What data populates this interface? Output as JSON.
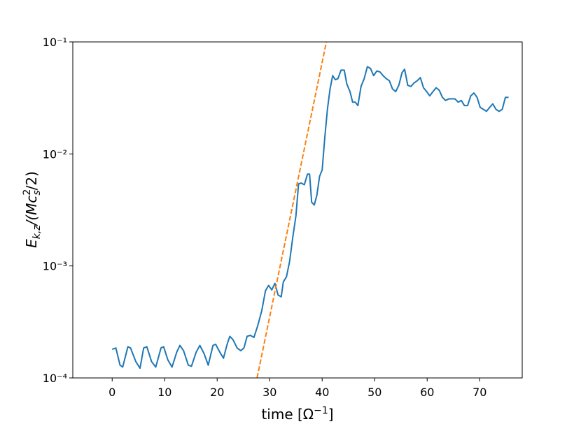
{
  "chart_data": {
    "type": "line",
    "yscale": "log",
    "x_label": [
      "time [Ω",
      "−1",
      "]"
    ],
    "y_label": [
      "E",
      "k,z",
      "/(Mc",
      "2",
      "s",
      "/2)"
    ],
    "xlim": [
      -7.5,
      78.1
    ],
    "ylim": [
      0.0001,
      0.1
    ],
    "xticks": [
      0,
      10,
      20,
      30,
      40,
      50,
      60,
      70
    ],
    "yticks": [
      {
        "value": 0.0001,
        "label": "10⁻⁴"
      },
      {
        "value": 0.001,
        "label": "10⁻³"
      },
      {
        "value": 0.01,
        "label": "10⁻²"
      },
      {
        "value": 0.1,
        "label": "10⁻¹"
      }
    ],
    "series": [
      {
        "color": "#1f77b4",
        "linestyle": "solid",
        "x": [
          0,
          0.7,
          1.5,
          2,
          3,
          3.5,
          4.5,
          5.3,
          6,
          6.6,
          7.5,
          8.3,
          9.3,
          9.8,
          10.6,
          11.4,
          12.3,
          12.9,
          13.6,
          14.5,
          15.1,
          16,
          16.7,
          17.5,
          18.3,
          19.2,
          19.7,
          20.5,
          21.2,
          21.9,
          22.4,
          23,
          23.8,
          24.5,
          25.1,
          25.7,
          26.3,
          27,
          27.7,
          28.5,
          29.2,
          29.8,
          30.4,
          31,
          31.6,
          32.2,
          32.6,
          33.2,
          33.8,
          34.4,
          35,
          35.5,
          36,
          36.6,
          37.2,
          37.6,
          38,
          38.5,
          39,
          39.5,
          40,
          40.5,
          41,
          41.5,
          42,
          42.5,
          43,
          43.6,
          44.2,
          44.7,
          45.3,
          45.8,
          46.3,
          46.8,
          47.4,
          48,
          48.6,
          49.2,
          49.8,
          50.4,
          51,
          51.6,
          52.2,
          52.8,
          53.4,
          54,
          54.6,
          55.2,
          55.7,
          56.3,
          56.9,
          57.5,
          58.1,
          58.7,
          59.3,
          59.9,
          60.5,
          61.1,
          61.7,
          62.3,
          62.9,
          63.5,
          64.1,
          64.7,
          65.3,
          65.9,
          66.5,
          67.1,
          67.7,
          68.3,
          68.9,
          69.5,
          70.1,
          70.7,
          71.3,
          71.9,
          72.5,
          73.1,
          73.7,
          74.3,
          74.9,
          75.5
        ],
        "values": [
          0.00018,
          0.000185,
          0.00013,
          0.000125,
          0.00019,
          0.000185,
          0.00014,
          0.000122,
          0.000185,
          0.00019,
          0.00014,
          0.000125,
          0.000185,
          0.00019,
          0.000145,
          0.000125,
          0.00017,
          0.000195,
          0.000175,
          0.00013,
          0.000127,
          0.00017,
          0.000195,
          0.000165,
          0.00013,
          0.000195,
          0.0002,
          0.00017,
          0.00015,
          0.0002,
          0.000235,
          0.00022,
          0.000185,
          0.000175,
          0.000185,
          0.000235,
          0.00024,
          0.00023,
          0.00029,
          0.0004,
          0.0006,
          0.00067,
          0.00061,
          0.0007,
          0.00055,
          0.00053,
          0.00072,
          0.0008,
          0.0011,
          0.0018,
          0.0028,
          0.0054,
          0.0055,
          0.0053,
          0.0066,
          0.0066,
          0.0037,
          0.0035,
          0.0043,
          0.0063,
          0.0072,
          0.014,
          0.025,
          0.038,
          0.05,
          0.046,
          0.047,
          0.056,
          0.056,
          0.042,
          0.036,
          0.029,
          0.029,
          0.027,
          0.04,
          0.047,
          0.06,
          0.058,
          0.05,
          0.055,
          0.054,
          0.05,
          0.047,
          0.045,
          0.038,
          0.036,
          0.041,
          0.053,
          0.057,
          0.041,
          0.04,
          0.043,
          0.045,
          0.048,
          0.039,
          0.036,
          0.033,
          0.036,
          0.039,
          0.037,
          0.032,
          0.03,
          0.031,
          0.031,
          0.031,
          0.029,
          0.03,
          0.027,
          0.027,
          0.033,
          0.035,
          0.032,
          0.026,
          0.025,
          0.024,
          0.026,
          0.028,
          0.025,
          0.024,
          0.025,
          0.032,
          0.032
        ]
      },
      {
        "color": "#ff7f0e",
        "linestyle": "dashed",
        "x": [
          27.6,
          40.8
        ],
        "values": [
          0.0001,
          0.1
        ]
      }
    ]
  }
}
